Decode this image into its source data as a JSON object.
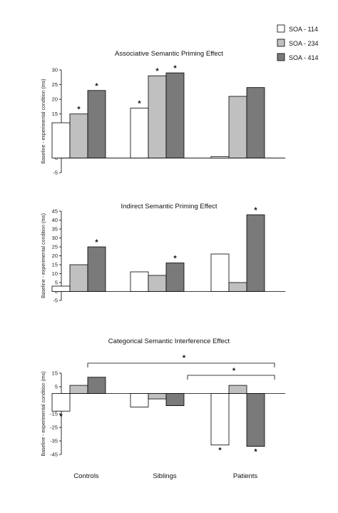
{
  "legend": [
    {
      "label": "SOA - 114",
      "color": "#ffffff"
    },
    {
      "label": "SOA - 234",
      "color": "#c0c0c0"
    },
    {
      "label": "SOA - 414",
      "color": "#7a7a7a"
    }
  ],
  "group_labels": [
    "Controls",
    "Siblings",
    "Patients"
  ],
  "chart_data": [
    {
      "type": "bar",
      "title": "Associative Semantic Priming Effect",
      "ylabel": "Baseline - experimental condition (ms)",
      "categories": [
        "Controls",
        "Siblings",
        "Patients"
      ],
      "series": [
        {
          "name": "SOA - 114",
          "values": [
            12,
            17,
            0.5
          ]
        },
        {
          "name": "SOA - 234",
          "values": [
            15,
            28,
            21
          ]
        },
        {
          "name": "SOA - 414",
          "values": [
            23,
            29,
            24
          ]
        }
      ],
      "significant": [
        [
          false,
          true,
          false
        ],
        [
          true,
          true,
          false
        ],
        [
          true,
          true,
          false
        ]
      ],
      "ylim": [
        -5,
        30
      ],
      "yticks": [
        -5,
        0,
        5,
        10,
        15,
        20,
        25,
        30
      ],
      "bracket_labels": []
    },
    {
      "type": "bar",
      "title": "Indirect Semantic Priming Effect",
      "ylabel": "Baseline - experimental condition (ms)",
      "categories": [
        "Controls",
        "Siblings",
        "Patients"
      ],
      "series": [
        {
          "name": "SOA - 114",
          "values": [
            3,
            11,
            21
          ]
        },
        {
          "name": "SOA - 234",
          "values": [
            15,
            9,
            5
          ]
        },
        {
          "name": "SOA - 414",
          "values": [
            25,
            16,
            43
          ]
        }
      ],
      "significant": [
        [
          false,
          false,
          false
        ],
        [
          false,
          false,
          false
        ],
        [
          true,
          true,
          true
        ]
      ],
      "ylim": [
        -5,
        45
      ],
      "yticks": [
        -5,
        0,
        5,
        10,
        15,
        20,
        25,
        30,
        35,
        40,
        45
      ],
      "bracket_labels": []
    },
    {
      "type": "bar",
      "title": "Categorical Semantic Interference Effect",
      "ylabel": "Baseline - experimental condition (ms)",
      "categories": [
        "Controls",
        "Siblings",
        "Patients"
      ],
      "series": [
        {
          "name": "SOA - 114",
          "values": [
            -13,
            -10,
            -38
          ]
        },
        {
          "name": "SOA - 234",
          "values": [
            6,
            -4,
            6
          ]
        },
        {
          "name": "SOA - 414",
          "values": [
            12,
            -9,
            -39
          ]
        }
      ],
      "significant": [
        [
          true,
          false,
          true
        ],
        [
          false,
          false,
          false
        ],
        [
          false,
          false,
          true
        ]
      ],
      "ylim": [
        -45,
        15
      ],
      "yticks": [
        -45,
        -35,
        -25,
        -15,
        -5,
        5,
        15
      ],
      "bracket_labels": [
        "*",
        "*"
      ]
    }
  ]
}
